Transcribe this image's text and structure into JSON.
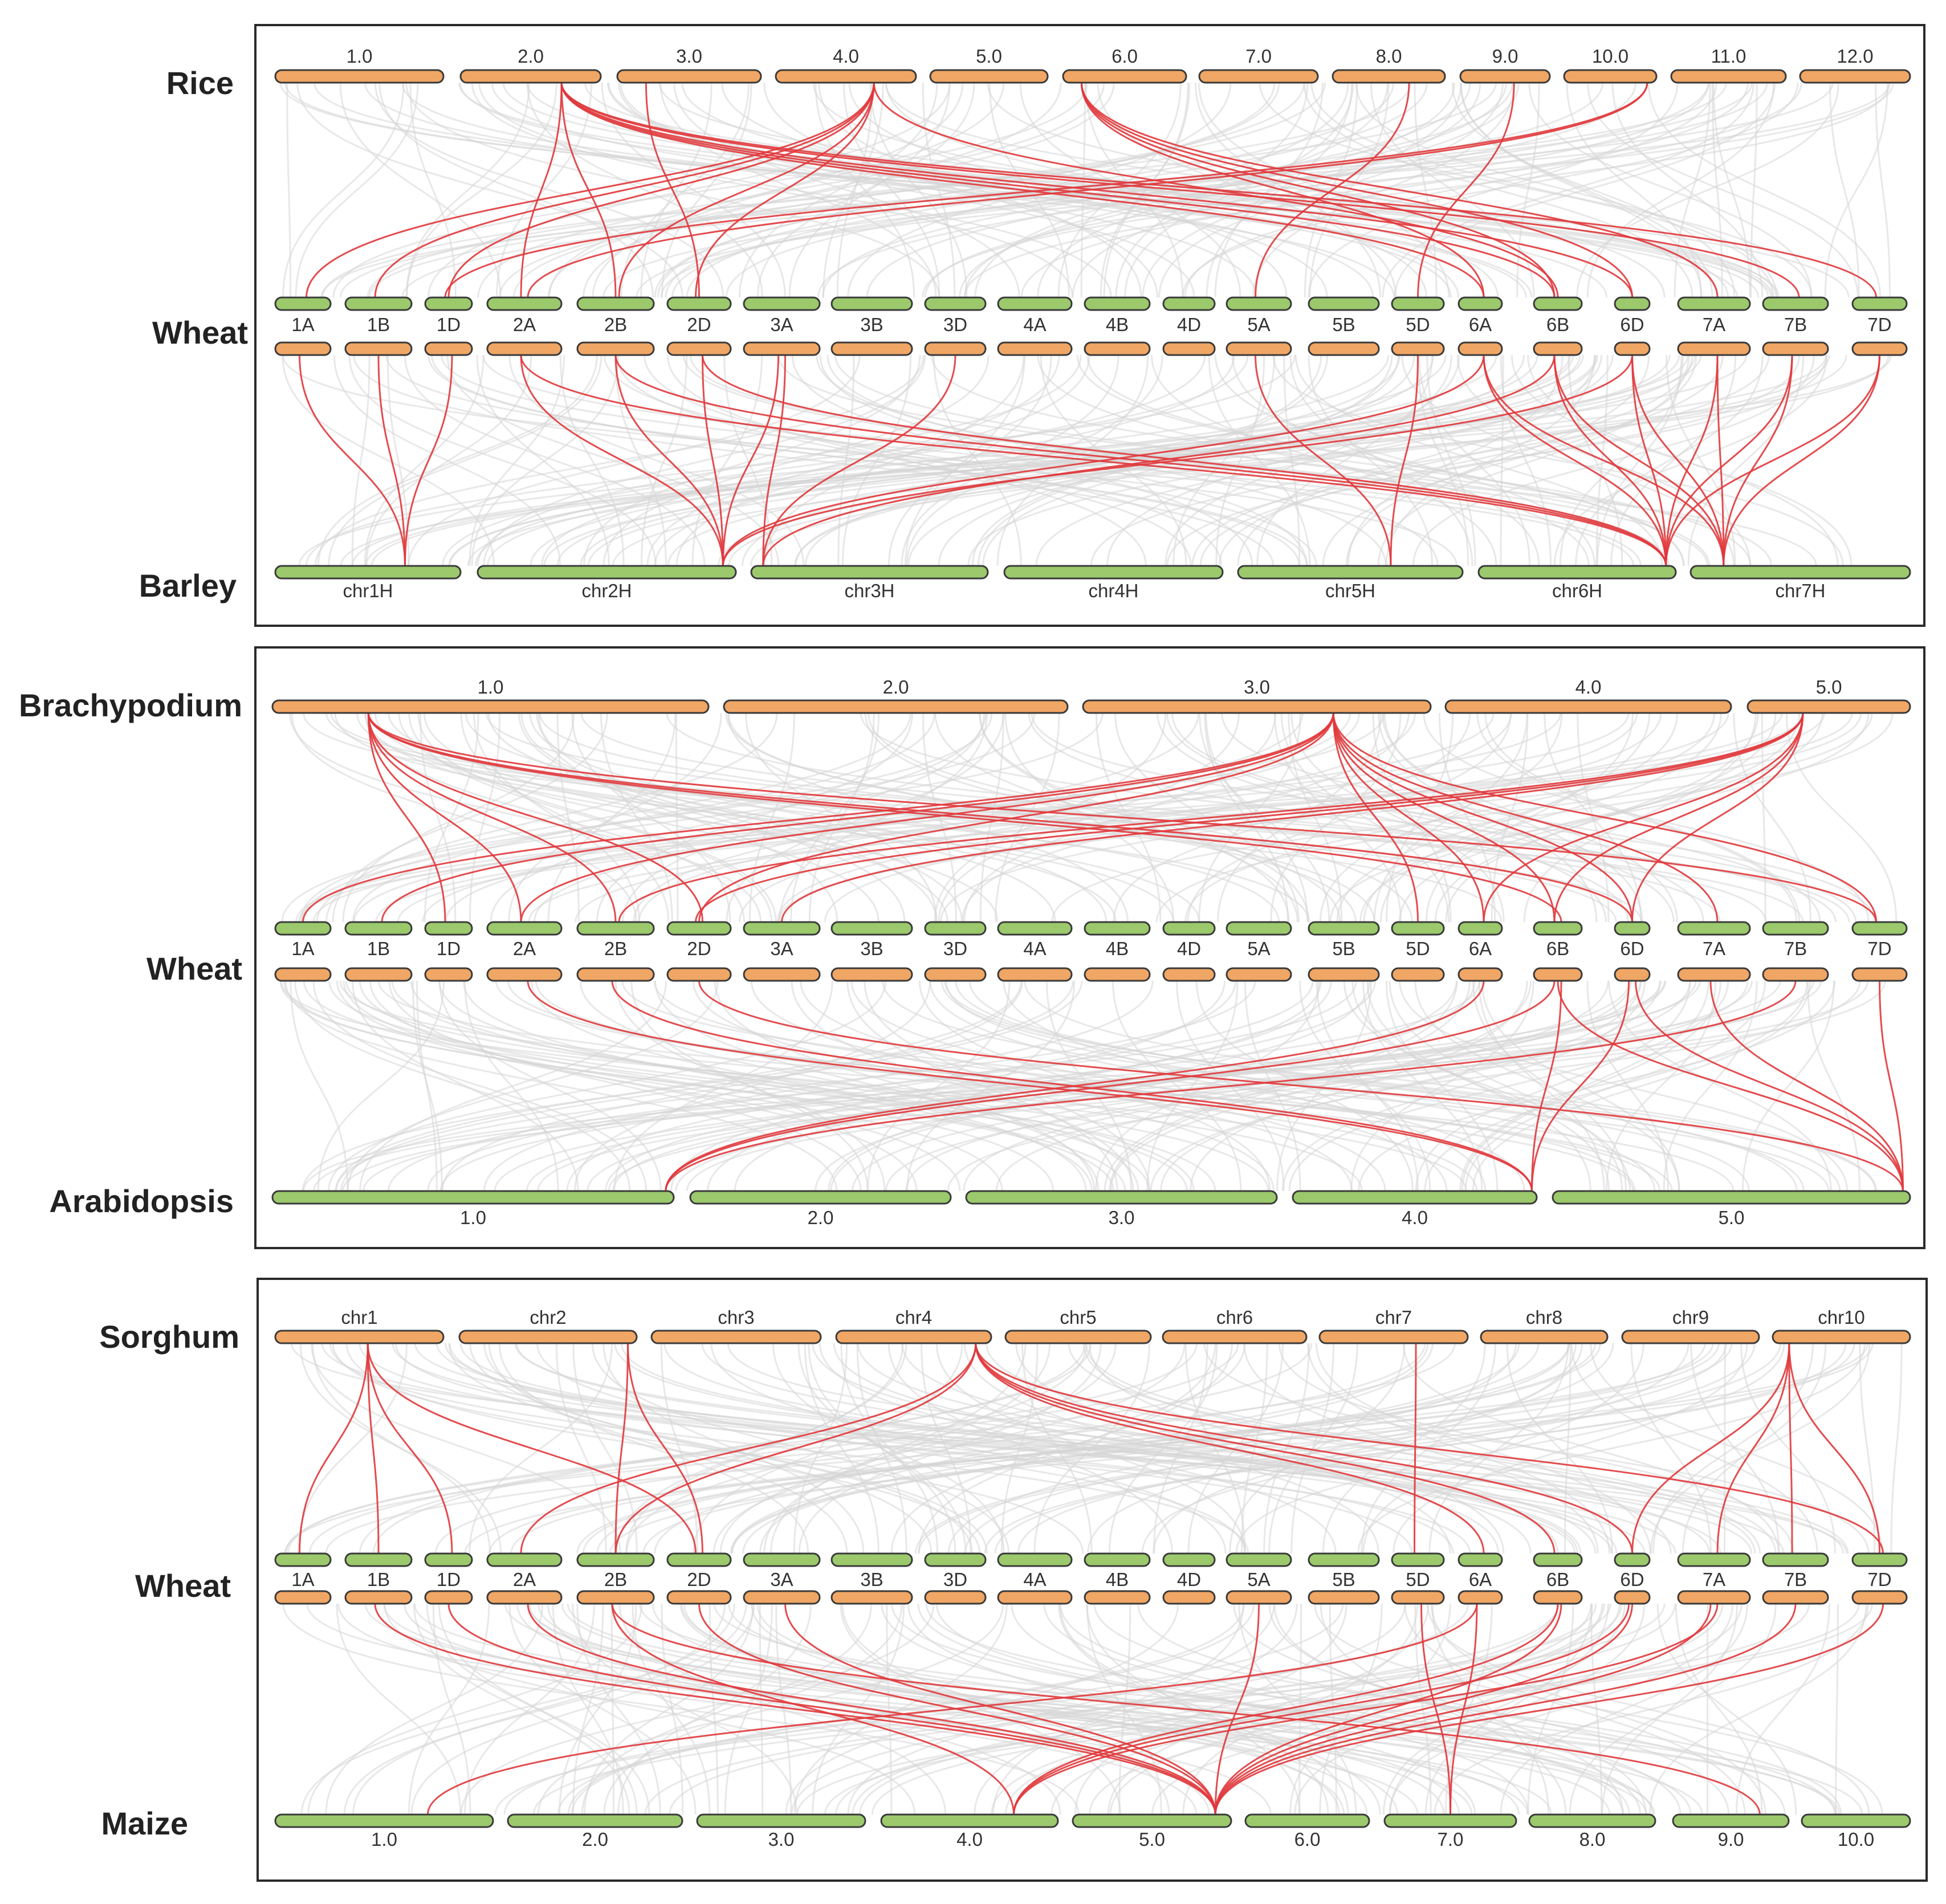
{
  "colors": {
    "orange": "#f0a664",
    "green": "#9bc96c",
    "highlight": "#e0383c",
    "background_link": "#d6d6d6"
  },
  "panels": [
    {
      "id": "rice-wheat-barley",
      "top_species": "Rice",
      "middle_species": "Wheat",
      "bottom_species": "Barley",
      "top_chromosomes": [
        "1.0",
        "2.0",
        "3.0",
        "4.0",
        "5.0",
        "6.0",
        "7.0",
        "8.0",
        "9.0",
        "10.0",
        "11.0",
        "12.0"
      ],
      "wheat_chromosomes": [
        "1A",
        "1B",
        "1D",
        "2A",
        "2B",
        "2D",
        "3A",
        "3B",
        "3D",
        "4A",
        "4B",
        "4D",
        "5A",
        "5B",
        "5D",
        "6A",
        "6B",
        "6D",
        "7A",
        "7B",
        "7D"
      ],
      "bottom_chromosomes": [
        "chr1H",
        "chr2H",
        "chr3H",
        "chr4H",
        "chr5H",
        "chr6H",
        "chr7H"
      ],
      "top_links": [
        [
          "2.0",
          "2A"
        ],
        [
          "2.0",
          "2B"
        ],
        [
          "2.0",
          "6A"
        ],
        [
          "2.0",
          "6B"
        ],
        [
          "2.0",
          "6D"
        ],
        [
          "2.0",
          "7B"
        ],
        [
          "2.0",
          "7D"
        ],
        [
          "3.0",
          "2D"
        ],
        [
          "4.0",
          "1A"
        ],
        [
          "4.0",
          "1B"
        ],
        [
          "4.0",
          "1D"
        ],
        [
          "4.0",
          "2B"
        ],
        [
          "4.0",
          "2D"
        ],
        [
          "4.0",
          "6B"
        ],
        [
          "6.0",
          "6A"
        ],
        [
          "6.0",
          "6B"
        ],
        [
          "6.0",
          "6D"
        ],
        [
          "6.0",
          "7A"
        ],
        [
          "8.0",
          "5A"
        ],
        [
          "9.0",
          "5D"
        ],
        [
          "10.0",
          "2A"
        ],
        [
          "10.0",
          "1D"
        ]
      ],
      "bottom_links": [
        [
          "1A",
          "chr1H"
        ],
        [
          "1B",
          "chr1H"
        ],
        [
          "1D",
          "chr1H"
        ],
        [
          "2A",
          "chr2H"
        ],
        [
          "2B",
          "chr2H"
        ],
        [
          "2D",
          "chr2H"
        ],
        [
          "2A",
          "chr6H"
        ],
        [
          "2B",
          "chr6H"
        ],
        [
          "2D",
          "chr6H"
        ],
        [
          "3A",
          "chr2H"
        ],
        [
          "3D",
          "chr3H"
        ],
        [
          "3A",
          "chr3H"
        ],
        [
          "5A",
          "chr5H"
        ],
        [
          "5D",
          "chr5H"
        ],
        [
          "6A",
          "chr2H"
        ],
        [
          "6B",
          "chr3H"
        ],
        [
          "6D",
          "chr2H"
        ],
        [
          "6A",
          "chr6H"
        ],
        [
          "6B",
          "chr6H"
        ],
        [
          "6D",
          "chr6H"
        ],
        [
          "6A",
          "chr7H"
        ],
        [
          "6B",
          "chr7H"
        ],
        [
          "6D",
          "chr7H"
        ],
        [
          "7A",
          "chr6H"
        ],
        [
          "7B",
          "chr6H"
        ],
        [
          "7D",
          "chr6H"
        ],
        [
          "7A",
          "chr7H"
        ],
        [
          "7B",
          "chr7H"
        ],
        [
          "7D",
          "chr7H"
        ]
      ]
    },
    {
      "id": "brachypodium-wheat-arabidopsis",
      "top_species": "Brachypodium",
      "middle_species": "Wheat",
      "bottom_species": "Arabidopsis",
      "top_chromosomes": [
        "1.0",
        "2.0",
        "3.0",
        "4.0",
        "5.0"
      ],
      "wheat_chromosomes": [
        "1A",
        "1B",
        "1D",
        "2A",
        "2B",
        "2D",
        "3A",
        "3B",
        "3D",
        "4A",
        "4B",
        "4D",
        "5A",
        "5B",
        "5D",
        "6A",
        "6B",
        "6D",
        "7A",
        "7B",
        "7D"
      ],
      "bottom_chromosomes": [
        "1.0",
        "2.0",
        "3.0",
        "4.0",
        "5.0"
      ],
      "top_links": [
        [
          "1.0",
          "2A"
        ],
        [
          "1.0",
          "2B"
        ],
        [
          "1.0",
          "2D"
        ],
        [
          "1.0",
          "1D"
        ],
        [
          "1.0",
          "6D"
        ],
        [
          "1.0",
          "6B"
        ],
        [
          "1.0",
          "7D"
        ],
        [
          "3.0",
          "1A"
        ],
        [
          "3.0",
          "1B"
        ],
        [
          "3.0",
          "2A"
        ],
        [
          "3.0",
          "5D"
        ],
        [
          "3.0",
          "6A"
        ],
        [
          "3.0",
          "6B"
        ],
        [
          "3.0",
          "6D"
        ],
        [
          "3.0",
          "7A"
        ],
        [
          "3.0",
          "7D"
        ],
        [
          "3.0",
          "2D"
        ],
        [
          "5.0",
          "2B"
        ],
        [
          "5.0",
          "2D"
        ],
        [
          "5.0",
          "3A"
        ],
        [
          "5.0",
          "6A"
        ],
        [
          "5.0",
          "6B"
        ],
        [
          "5.0",
          "6D"
        ]
      ],
      "bottom_links": [
        [
          "1.0",
          "6B"
        ],
        [
          "1.0",
          "7B"
        ],
        [
          "2A",
          "4.0"
        ],
        [
          "2B",
          "4.0"
        ],
        [
          "2D",
          "5.0"
        ],
        [
          "6B",
          "4.0"
        ],
        [
          "6D",
          "4.0"
        ],
        [
          "6B",
          "5.0"
        ],
        [
          "6D",
          "5.0"
        ],
        [
          "7A",
          "5.0"
        ],
        [
          "7D",
          "5.0"
        ],
        [
          "6A",
          "1.0"
        ]
      ]
    },
    {
      "id": "sorghum-wheat-maize",
      "top_species": "Sorghum",
      "middle_species": "Wheat",
      "bottom_species": "Maize",
      "top_chromosomes": [
        "chr1",
        "chr2",
        "chr3",
        "chr4",
        "chr5",
        "chr6",
        "chr7",
        "chr8",
        "chr9",
        "chr10"
      ],
      "wheat_chromosomes": [
        "1A",
        "1B",
        "1D",
        "2A",
        "2B",
        "2D",
        "3A",
        "3B",
        "3D",
        "4A",
        "4B",
        "4D",
        "5A",
        "5B",
        "5D",
        "6A",
        "6B",
        "6D",
        "7A",
        "7B",
        "7D"
      ],
      "bottom_chromosomes": [
        "1.0",
        "2.0",
        "3.0",
        "4.0",
        "5.0",
        "6.0",
        "7.0",
        "8.0",
        "9.0",
        "10.0"
      ],
      "top_links": [
        [
          "chr1",
          "1A"
        ],
        [
          "chr1",
          "1B"
        ],
        [
          "chr1",
          "1D"
        ],
        [
          "chr1",
          "2D"
        ],
        [
          "chr2",
          "2B"
        ],
        [
          "chr2",
          "2D"
        ],
        [
          "chr4",
          "2A"
        ],
        [
          "chr4",
          "2B"
        ],
        [
          "chr4",
          "6A"
        ],
        [
          "chr4",
          "6B"
        ],
        [
          "chr4",
          "6D"
        ],
        [
          "chr4",
          "7D"
        ],
        [
          "chr7",
          "5D"
        ],
        [
          "chr10",
          "6D"
        ],
        [
          "chr10",
          "7A"
        ],
        [
          "chr10",
          "7B"
        ],
        [
          "chr10",
          "7D"
        ]
      ],
      "bottom_links": [
        [
          "1B",
          "5.0"
        ],
        [
          "1D",
          "5.0"
        ],
        [
          "2A",
          "5.0"
        ],
        [
          "2B",
          "4.0"
        ],
        [
          "2D",
          "5.0"
        ],
        [
          "3A",
          "5.0"
        ],
        [
          "2B",
          "9.0"
        ],
        [
          "5A",
          "5.0"
        ],
        [
          "5D",
          "7.0"
        ],
        [
          "6A",
          "1.0"
        ],
        [
          "6B",
          "4.0"
        ],
        [
          "6B",
          "5.0"
        ],
        [
          "6D",
          "4.0"
        ],
        [
          "6D",
          "5.0"
        ],
        [
          "7A",
          "4.0"
        ],
        [
          "7A",
          "5.0"
        ],
        [
          "7B",
          "5.0"
        ],
        [
          "7D",
          "5.0"
        ],
        [
          "6A",
          "7.0"
        ]
      ]
    }
  ]
}
